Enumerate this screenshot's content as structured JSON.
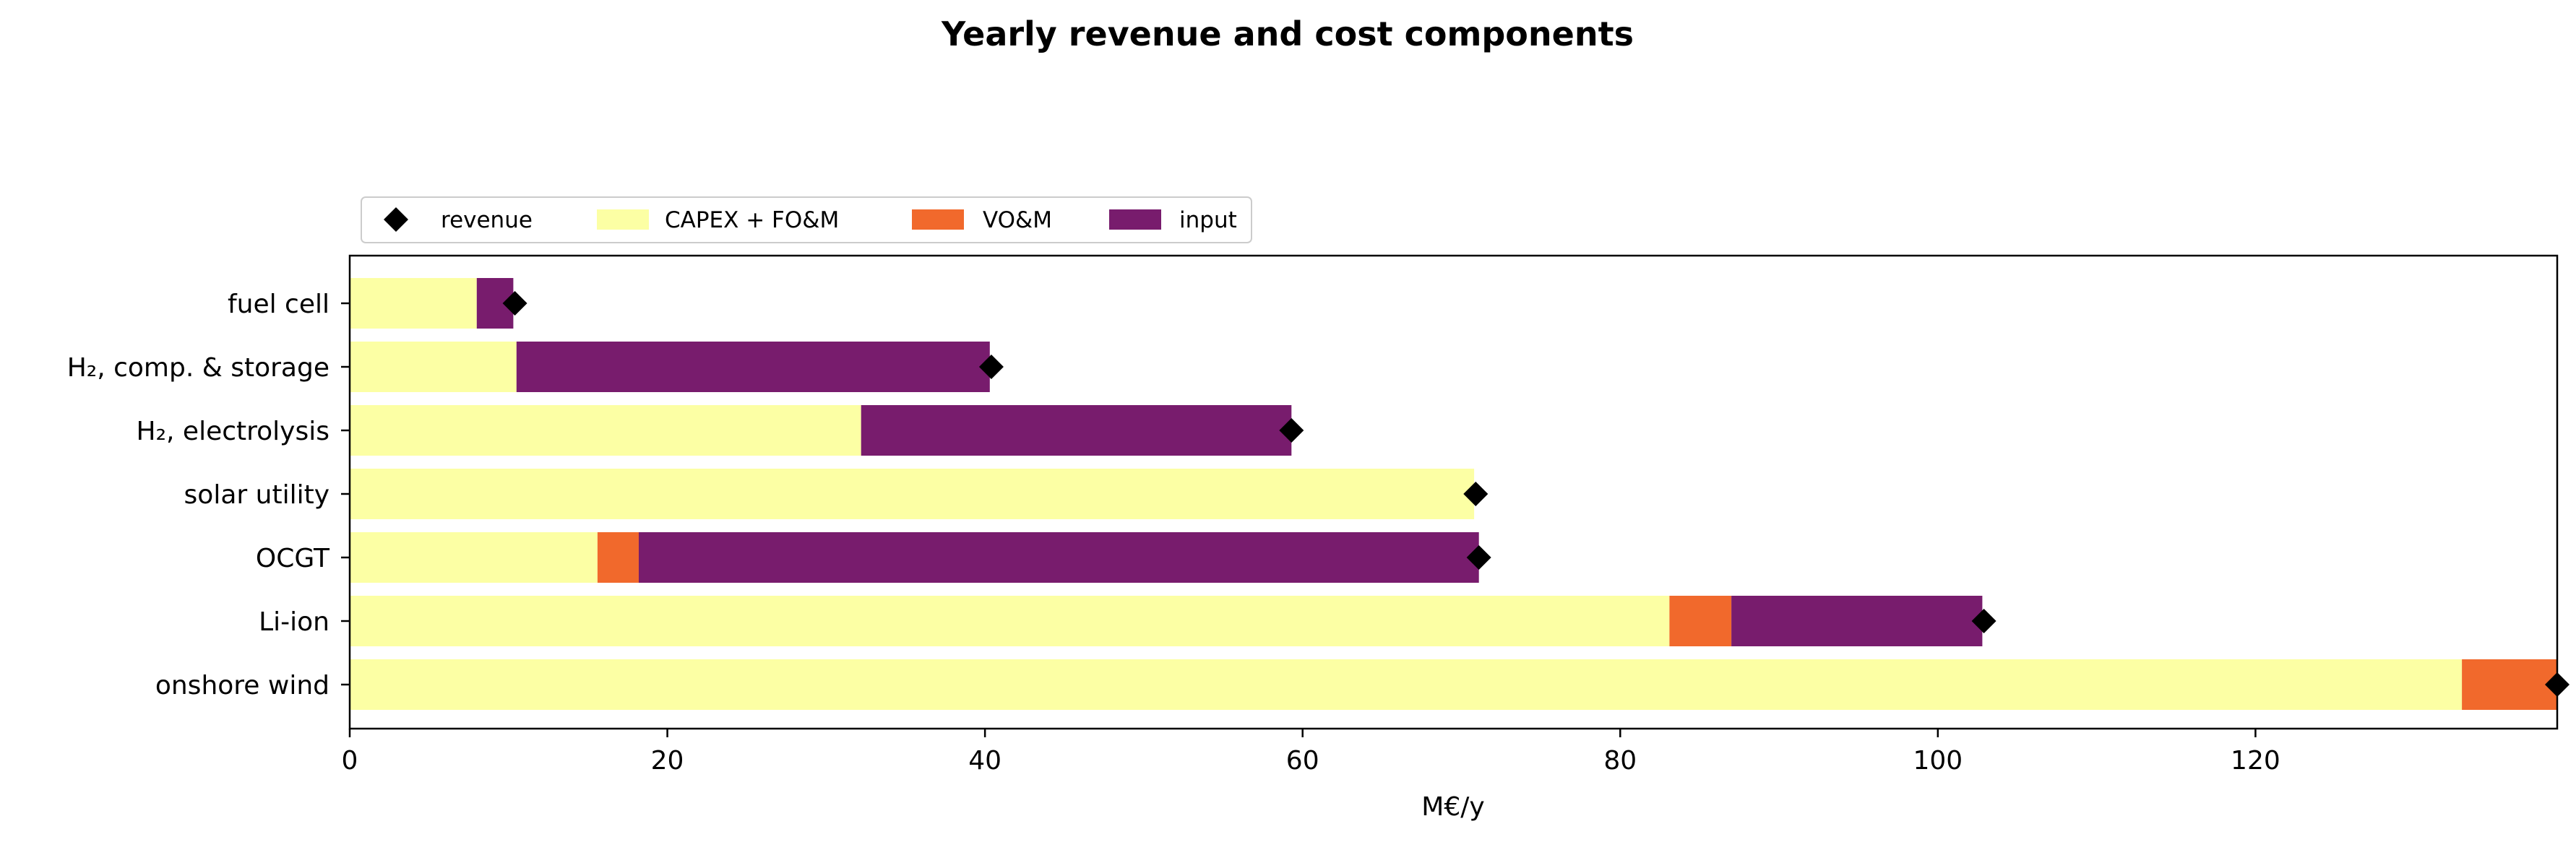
{
  "chart_data": {
    "type": "bar",
    "orientation": "horizontal",
    "stacked": true,
    "title": "Yearly revenue and cost components",
    "xlabel": "M€/y",
    "ylabel": "",
    "xlim": [
      0,
      139
    ],
    "xticks": [
      0,
      20,
      40,
      60,
      80,
      100,
      120
    ],
    "grid": false,
    "legend_position": "top-left, above plot",
    "categories": [
      "fuel cell",
      "H₂, comp. & storage",
      "H₂, electrolysis",
      "solar utility",
      "OCGT",
      "Li-ion",
      "onshore wind"
    ],
    "series": [
      {
        "name": "CAPEX + FO&M",
        "color": "#fcffa4",
        "values": [
          8.0,
          10.5,
          32.2,
          70.8,
          15.6,
          83.1,
          133.0
        ]
      },
      {
        "name": "VO&M",
        "color": "#f1692c",
        "values": [
          0.0,
          0.0,
          0.0,
          0.0,
          2.6,
          3.9,
          6.0
        ]
      },
      {
        "name": "input",
        "color": "#781c6d",
        "values": [
          2.3,
          29.8,
          27.1,
          0.0,
          52.9,
          15.8,
          0.0
        ]
      }
    ],
    "revenue": {
      "name": "revenue",
      "color": "#000000",
      "marker": "diamond",
      "values": [
        10.4,
        40.4,
        59.3,
        70.9,
        71.1,
        102.9,
        139.0
      ]
    },
    "legend": [
      {
        "label": "revenue",
        "kind": "marker"
      },
      {
        "label": "CAPEX + FO&M",
        "kind": "patch",
        "color": "#fcffa4"
      },
      {
        "label": "VO&M",
        "kind": "patch",
        "color": "#f1692c"
      },
      {
        "label": "input",
        "kind": "patch",
        "color": "#781c6d"
      }
    ]
  }
}
